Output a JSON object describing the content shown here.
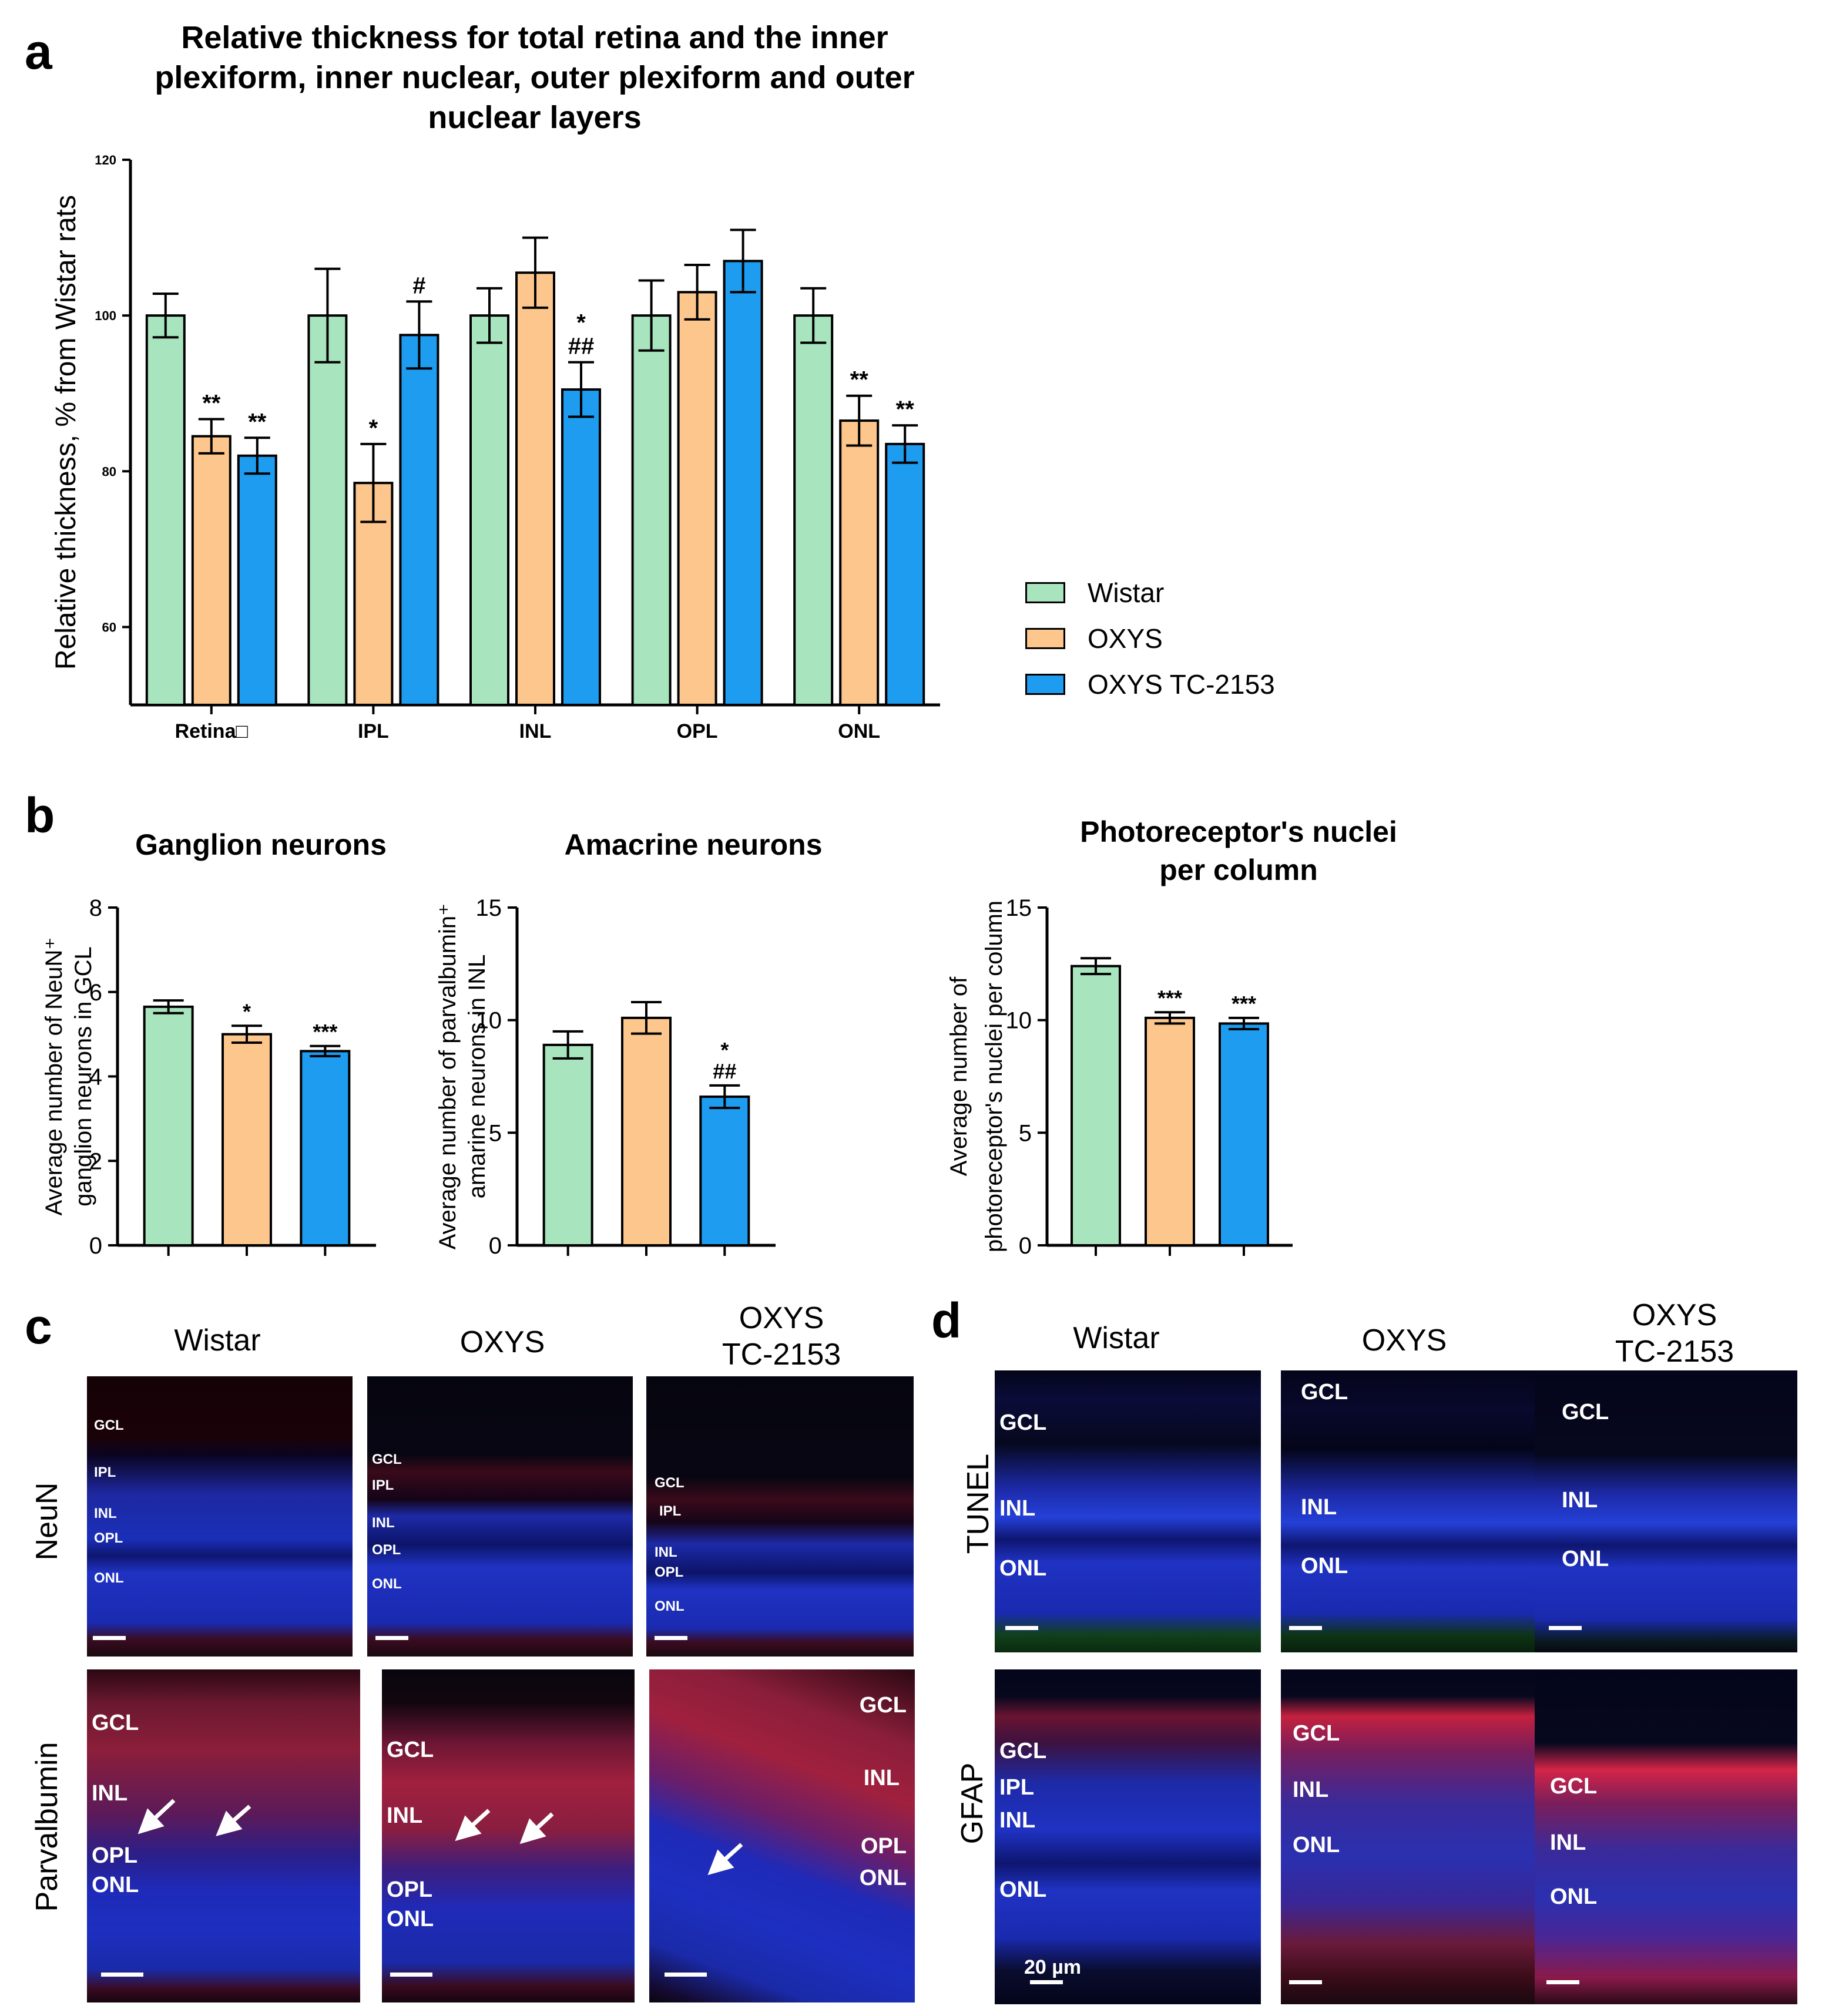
{
  "panel_letters": {
    "a": "a",
    "b": "b",
    "c": "c",
    "d": "d"
  },
  "colors": {
    "wistar": "#a8e4bd",
    "oxys": "#fcc68c",
    "tc2153": "#1d9cf0"
  },
  "legend": {
    "wistar": "Wistar",
    "oxys": "OXYS",
    "tc2153": "OXYS TC-2153"
  },
  "chart_data": [
    {
      "type": "bar",
      "title": "Relative thickness for total retina and the inner plexiform, inner nuclear, outer plexiform and outer nuclear layers",
      "title_lines": [
        "Relative thickness for total retina and the inner",
        "plexiform, inner nuclear, outer plexiform and outer",
        "nuclear layers"
      ],
      "categories": [
        "Retina□",
        "IPL",
        "INL",
        "OPL",
        "ONL"
      ],
      "ylabel": "Relative thickness, % from Wistar rats",
      "ylim": [
        50,
        120
      ],
      "yticks": [
        60,
        80,
        100,
        120
      ],
      "series": [
        {
          "name": "Wistar",
          "values": [
            100,
            100,
            100,
            100,
            100
          ],
          "err": [
            2.8,
            6,
            3.5,
            4.5,
            3.5
          ],
          "sig": [
            "",
            "",
            "",
            "",
            ""
          ]
        },
        {
          "name": "OXYS",
          "values": [
            84.5,
            78.5,
            105.5,
            103,
            86.5
          ],
          "err": [
            2.2,
            5,
            4.5,
            3.5,
            3.2
          ],
          "sig": [
            "**",
            "*",
            "",
            "",
            "**"
          ]
        },
        {
          "name": "OXYS TC-2153",
          "values": [
            82,
            97.5,
            90.5,
            107,
            83.5
          ],
          "err": [
            2.3,
            4.3,
            3.5,
            4,
            2.4
          ],
          "sig": [
            "**",
            "#",
            "*\n##",
            "",
            "**"
          ]
        }
      ]
    },
    {
      "type": "bar",
      "title": "Ganglion neurons",
      "ylabel_lines": [
        "Average number of NeuN⁺",
        "ganglion neurons in GCL"
      ],
      "ylim": [
        0,
        8
      ],
      "yticks": [
        0,
        2,
        4,
        6,
        8
      ],
      "series": [
        {
          "name": "Wistar",
          "values": [
            5.65
          ],
          "err": [
            0.15
          ],
          "sig": [
            ""
          ]
        },
        {
          "name": "OXYS",
          "values": [
            5.0
          ],
          "err": [
            0.2
          ],
          "sig": [
            "*"
          ]
        },
        {
          "name": "OXYS TC-2153",
          "values": [
            4.6
          ],
          "err": [
            0.12
          ],
          "sig": [
            "***"
          ]
        }
      ]
    },
    {
      "type": "bar",
      "title": "Amacrine neurons",
      "ylabel_lines": [
        "Average number of parvalbumin⁺",
        "amarine neurons in INL"
      ],
      "ylim": [
        0,
        15
      ],
      "yticks": [
        0,
        5,
        10,
        15
      ],
      "series": [
        {
          "name": "Wistar",
          "values": [
            8.9
          ],
          "err": [
            0.6
          ],
          "sig": [
            ""
          ]
        },
        {
          "name": "OXYS",
          "values": [
            10.1
          ],
          "err": [
            0.7
          ],
          "sig": [
            ""
          ]
        },
        {
          "name": "OXYS TC-2153",
          "values": [
            6.6
          ],
          "err": [
            0.5
          ],
          "sig": [
            "*\n##"
          ]
        }
      ]
    },
    {
      "type": "bar",
      "title": "Photoreceptor's nuclei per column",
      "title_lines": [
        "Photoreceptor's nuclei",
        "per column"
      ],
      "ylabel_lines": [
        "Average number of",
        "photoreceptor's nuclei per column"
      ],
      "ylim": [
        0,
        15
      ],
      "yticks": [
        0,
        5,
        10,
        15
      ],
      "series": [
        {
          "name": "Wistar",
          "values": [
            12.4
          ],
          "err": [
            0.35
          ],
          "sig": [
            ""
          ]
        },
        {
          "name": "OXYS",
          "values": [
            10.1
          ],
          "err": [
            0.25
          ],
          "sig": [
            "***"
          ]
        },
        {
          "name": "OXYS TC-2153",
          "values": [
            9.85
          ],
          "err": [
            0.25
          ],
          "sig": [
            "***"
          ]
        }
      ]
    }
  ],
  "panel_c": {
    "col_headers": [
      "Wistar",
      "OXYS",
      "OXYS\nTC-2153"
    ],
    "row_labels": [
      "NeuN",
      "Parvalbumin"
    ],
    "neun_layers": [
      [
        "GCL",
        "IPL",
        "INL",
        "OPL",
        "ONL"
      ],
      [
        "GCL",
        "IPL",
        "INL",
        "OPL",
        "ONL"
      ],
      [
        "GCL",
        "IPL",
        "INL",
        "OPL",
        "ONL"
      ]
    ],
    "parv_layers": [
      [
        "GCL",
        "INL",
        "OPL",
        "ONL"
      ],
      [
        "GCL",
        "INL",
        "OPL",
        "ONL"
      ],
      [
        "GCL",
        "INL",
        "OPL",
        "ONL"
      ]
    ]
  },
  "panel_d": {
    "col_headers": [
      "Wistar",
      "OXYS",
      "OXYS\nTC-2153"
    ],
    "row_labels": [
      "TUNEL",
      "GFAP"
    ],
    "tunel_layers": [
      [
        "GCL",
        "INL",
        "ONL"
      ],
      [
        "GCL",
        "INL",
        "ONL"
      ],
      [
        "GCL",
        "INL",
        "ONL"
      ]
    ],
    "gfap_layers": [
      [
        "GCL",
        "IPL",
        "INL",
        "ONL"
      ],
      [
        "GCL",
        "INL",
        "ONL"
      ],
      [
        "GCL",
        "INL",
        "ONL"
      ]
    ],
    "scale_label": "20 µm"
  }
}
